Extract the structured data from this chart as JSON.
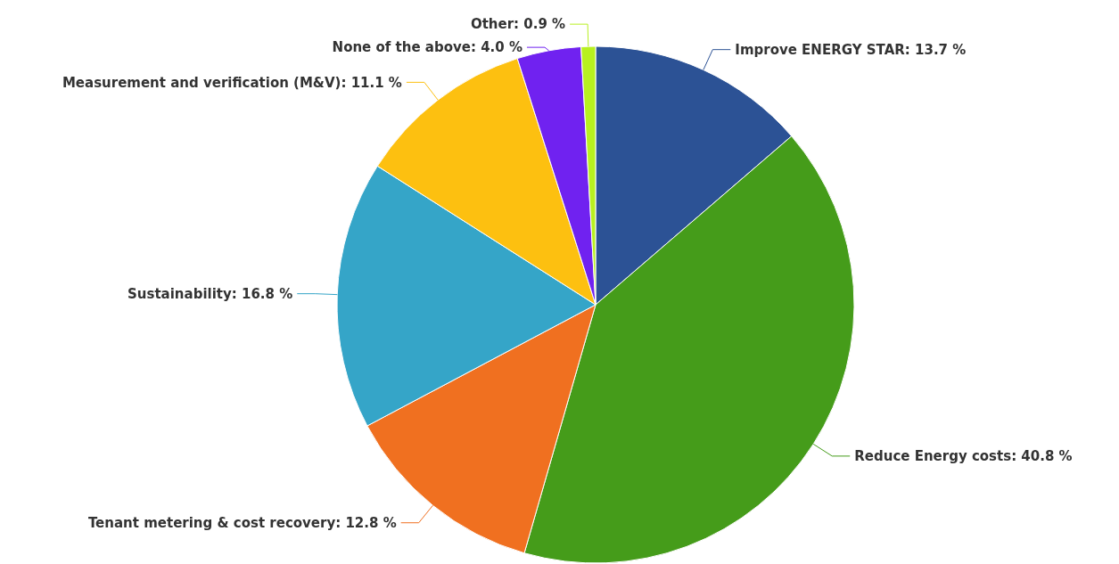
{
  "chart_data": {
    "type": "pie",
    "categories": [
      "Improve ENERGY STAR",
      "Reduce Energy costs",
      "Tenant metering & cost recovery",
      "Sustainability",
      "Measurement and verification (M&V)",
      "None of the above",
      "Other"
    ],
    "values": [
      13.7,
      40.8,
      12.8,
      16.8,
      11.1,
      4.0,
      0.9
    ],
    "value_labels": [
      "13.7 %",
      "40.8 %",
      "12.8 %",
      "16.8 %",
      "11.1 %",
      "4.0 %",
      "0.9 %"
    ],
    "colors": [
      "#2c5295",
      "#459c1a",
      "#f07020",
      "#35a5c8",
      "#fdc010",
      "#7022f0",
      "#b8f020"
    ],
    "legend": false
  }
}
